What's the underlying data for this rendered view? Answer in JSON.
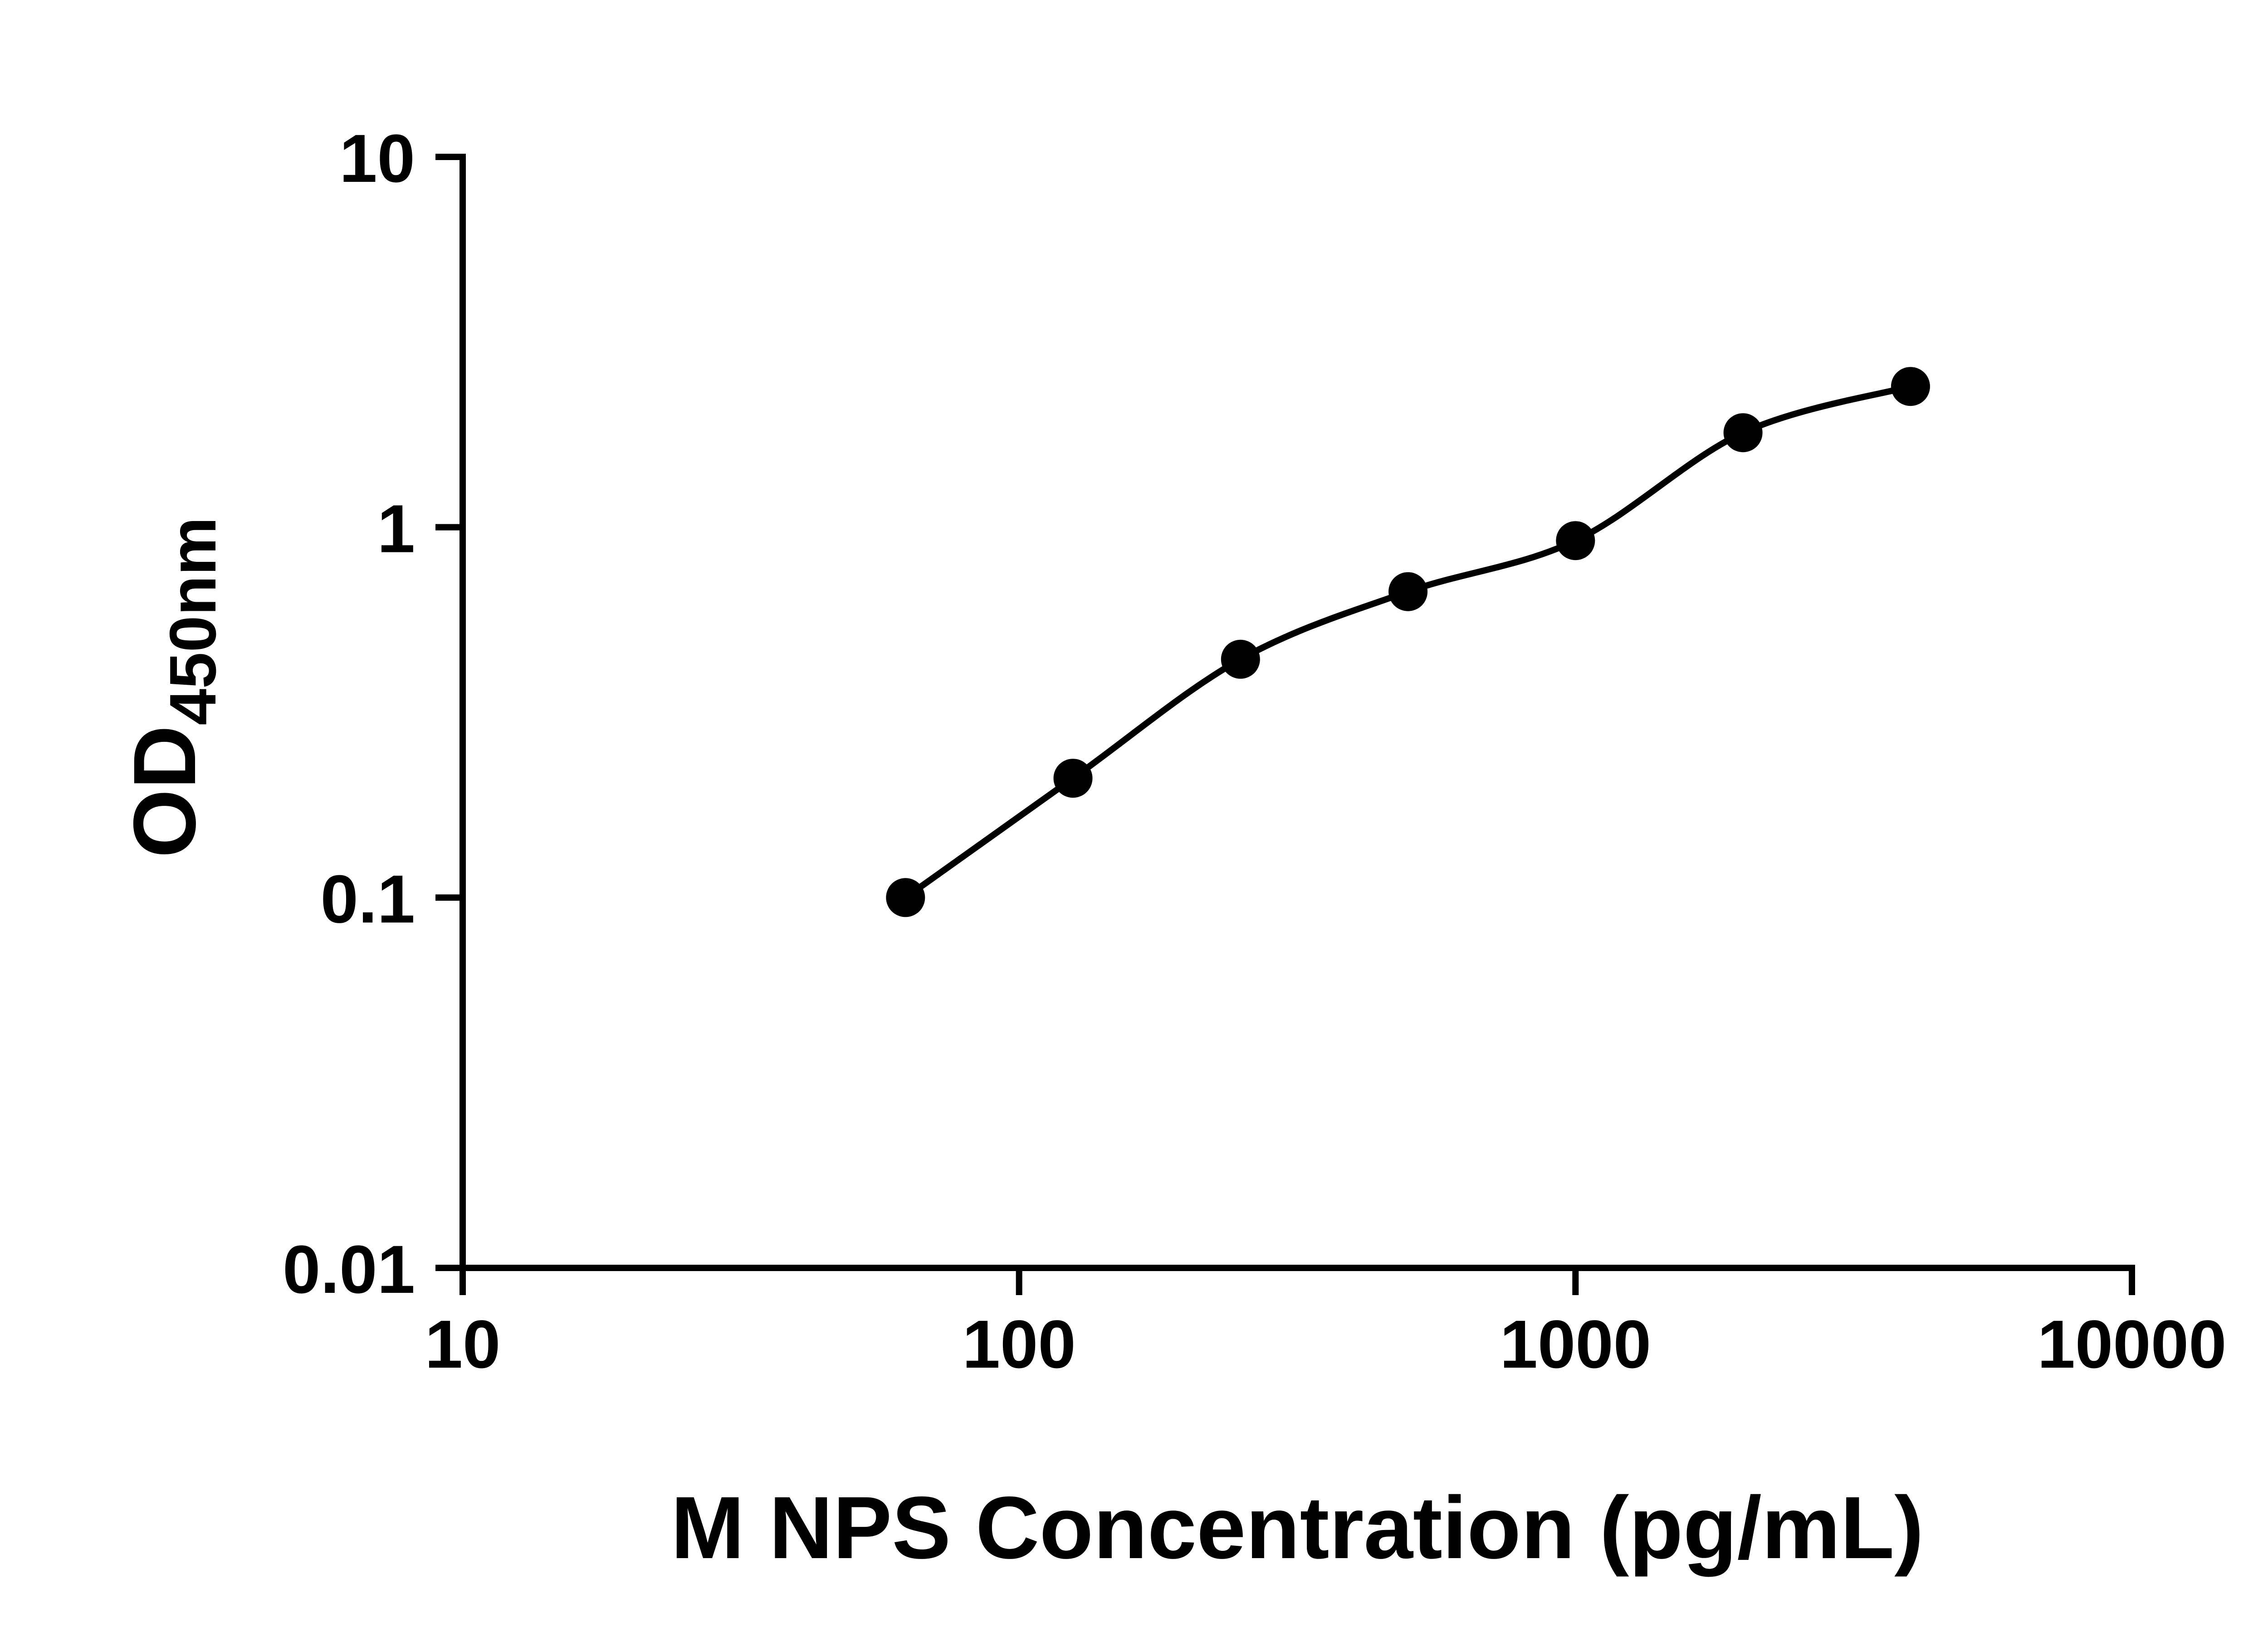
{
  "chart_data": {
    "type": "scatter",
    "subtype": "scatter-with-fit-line",
    "title": "",
    "xlabel": "M NPS Concentration (pg/mL)",
    "ylabel": "OD450nm",
    "ylabel_main": "OD",
    "ylabel_sub": "450nm",
    "x_scale": "log",
    "y_scale": "log",
    "xlim": [
      10,
      10000
    ],
    "ylim": [
      0.01,
      10
    ],
    "x_ticks": [
      {
        "value": 10,
        "label": "10"
      },
      {
        "value": 100,
        "label": "100"
      },
      {
        "value": 1000,
        "label": "1000"
      },
      {
        "value": 10000,
        "label": "10000"
      }
    ],
    "y_ticks": [
      {
        "value": 0.01,
        "label": "0.01"
      },
      {
        "value": 0.1,
        "label": "0.1"
      },
      {
        "value": 1,
        "label": "1"
      },
      {
        "value": 10,
        "label": "10"
      }
    ],
    "x": [
      62.5,
      125,
      250,
      500,
      1000,
      2000,
      4000
    ],
    "y": [
      0.1,
      0.21,
      0.44,
      0.67,
      0.92,
      1.8,
      2.4
    ],
    "grid": false,
    "legend": false,
    "marker_color": "#000000",
    "line_color": "#000000",
    "axis_color": "#000000",
    "background_color": "#ffffff"
  }
}
